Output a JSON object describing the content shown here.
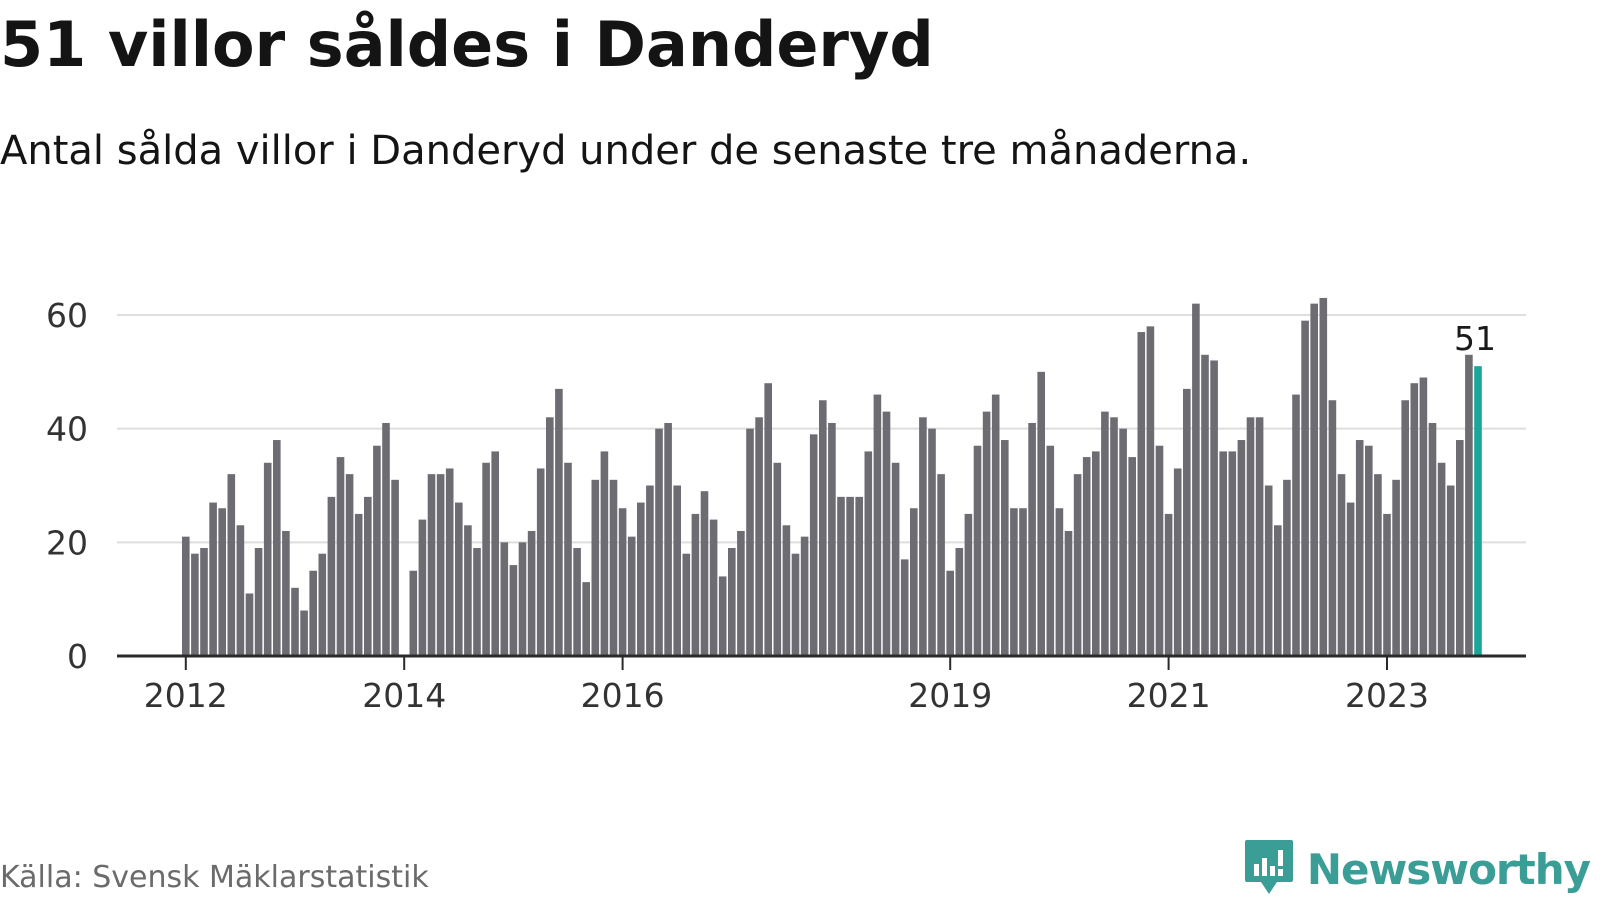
{
  "header": {
    "title": "51 villor såldes i Danderyd",
    "subtitle": "Antal sålda villor i Danderyd under de senaste tre månaderna."
  },
  "footer": {
    "source": "Källa: Svensk Mäklarstatistik",
    "brand": "Newsworthy",
    "brand_icon": "bar-chart-speech-bubble-icon"
  },
  "colors": {
    "bar": "#6d6c72",
    "highlight": "#1aa69a",
    "grid": "#dedede",
    "axis": "#2a2a2a",
    "brand": "#3a9d96"
  },
  "chart_data": {
    "type": "bar",
    "title": "51 villor såldes i Danderyd",
    "subtitle": "Antal sålda villor i Danderyd under de senaste tre månaderna.",
    "xlabel": "",
    "ylabel": "",
    "ylim": [
      0,
      65
    ],
    "yticks": [
      0,
      20,
      40,
      60
    ],
    "grid": true,
    "bar_start": "2012-01",
    "bar_interval_months": 1,
    "xticks": [
      {
        "label": "2012",
        "date": "2012-01"
      },
      {
        "label": "2014",
        "date": "2014-01"
      },
      {
        "label": "2016",
        "date": "2016-01"
      },
      {
        "label": "2019",
        "date": "2019-01"
      },
      {
        "label": "2021",
        "date": "2021-01"
      },
      {
        "label": "2023",
        "date": "2023-01"
      }
    ],
    "values": [
      21,
      18,
      19,
      27,
      26,
      32,
      23,
      11,
      19,
      34,
      38,
      22,
      12,
      8,
      15,
      18,
      28,
      35,
      32,
      25,
      28,
      37,
      41,
      31,
      0,
      15,
      24,
      32,
      32,
      33,
      27,
      23,
      19,
      34,
      36,
      20,
      16,
      20,
      22,
      33,
      42,
      47,
      34,
      19,
      13,
      31,
      36,
      31,
      26,
      21,
      27,
      30,
      40,
      41,
      30,
      18,
      25,
      29,
      24,
      14,
      19,
      22,
      40,
      42,
      48,
      34,
      23,
      18,
      21,
      39,
      45,
      41,
      28,
      28,
      28,
      36,
      46,
      43,
      34,
      17,
      26,
      42,
      40,
      32,
      15,
      19,
      25,
      37,
      43,
      46,
      38,
      26,
      26,
      41,
      50,
      37,
      26,
      22,
      32,
      35,
      36,
      43,
      42,
      40,
      35,
      57,
      58,
      37,
      25,
      33,
      47,
      62,
      53,
      52,
      36,
      36,
      38,
      42,
      42,
      30,
      23,
      31,
      46,
      59,
      62,
      63,
      45,
      32,
      27,
      38,
      37,
      32,
      25,
      31,
      45,
      48,
      49,
      41,
      34,
      30,
      38,
      53,
      51
    ],
    "highlight": {
      "index": 142,
      "value": 51,
      "label": "51"
    }
  }
}
